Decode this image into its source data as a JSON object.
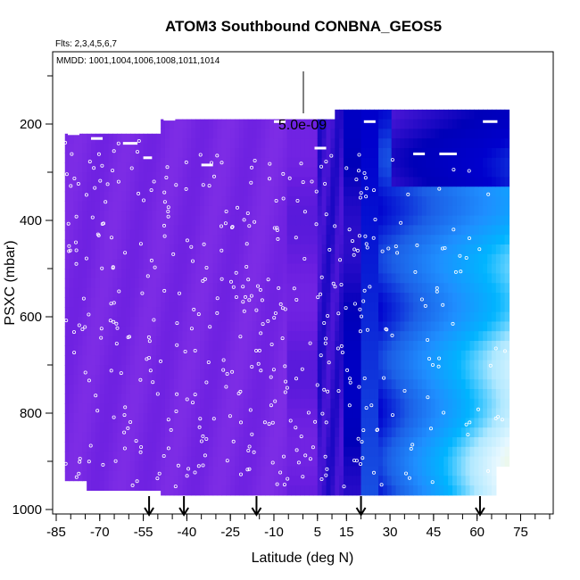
{
  "chart_data": {
    "type": "heatmap",
    "title": "ATOM3 Southbound CONBNA_GEOS5",
    "subtitle_flights": "Flts: 2,3,4,5,6,7",
    "subtitle_dates": "MMDD: 1001,1004,1006,1008,1011,1014",
    "xlabel": "Latitude (deg N)",
    "ylabel": "PSXC (mbar)",
    "xlim": [
      -85,
      85
    ],
    "ylim": [
      1000,
      50
    ],
    "x_ticks": [
      -85,
      -70,
      -55,
      -40,
      -25,
      -10,
      5,
      15,
      30,
      45,
      60,
      75
    ],
    "x_tick_labels": [
      "-85",
      "-70",
      "-55",
      "-40",
      "-25",
      "-10",
      "5",
      "15",
      "30",
      "45",
      "60",
      "75"
    ],
    "y_ticks": [
      200,
      400,
      600,
      800,
      1000
    ],
    "y_tick_labels": [
      "200",
      "400",
      "600",
      "800",
      "1000"
    ],
    "scale_label": "5.0e-09",
    "arrow_latitudes": [
      -53,
      -41,
      -16,
      20,
      61
    ],
    "colormap": [
      "#7f2ee6",
      "#6a1ee0",
      "#4a16d6",
      "#0000b8",
      "#0000cd",
      "#1c5fe6",
      "#1f8fff",
      "#00b4ff",
      "#b0e8ff",
      "#e8f8ff",
      "#f5f8c8",
      "#fff096"
    ],
    "color_bands": [
      {
        "lat_range": [
          -82,
          -5
        ],
        "value": 0.05
      },
      {
        "lat_range": [
          -5,
          4
        ],
        "value": 0.12
      },
      {
        "lat_range": [
          4,
          12
        ],
        "value": 0.25
      },
      {
        "lat_range": [
          12,
          18
        ],
        "value": 0.32
      },
      {
        "lat_range": [
          18,
          25
        ],
        "value": 0.45
      },
      {
        "lat_range": [
          25,
          40
        ],
        "value": 0.6
      },
      {
        "lat_range": [
          40,
          55
        ],
        "value": 0.7
      },
      {
        "lat_range": [
          55,
          71
        ],
        "value": 0.78
      }
    ]
  }
}
